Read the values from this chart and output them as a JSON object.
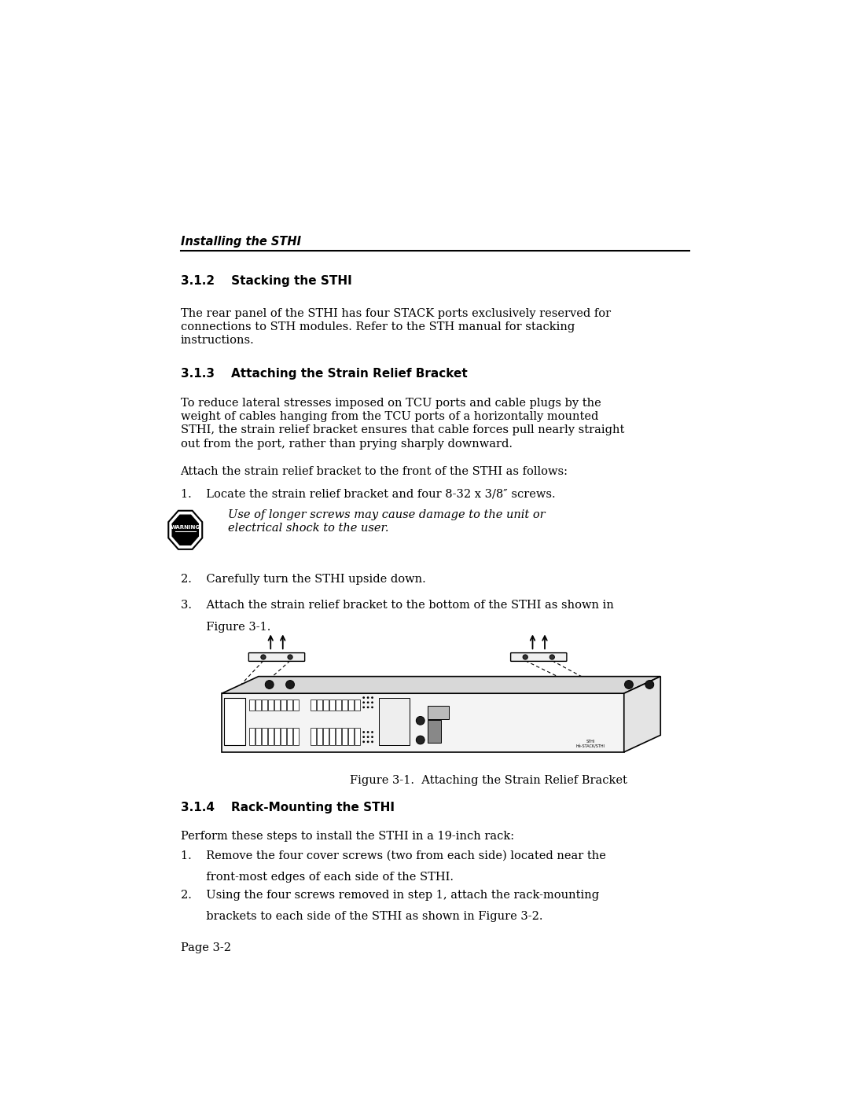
{
  "bg_color": "#ffffff",
  "page_width": 10.8,
  "page_height": 13.97,
  "header_italic_bold": "Installing the STHI",
  "section_312_title": "3.1.2    Stacking the STHI",
  "section_312_body": "The rear panel of the STHI has four STACK ports exclusively reserved for\nconnections to STH modules. Refer to the STH manual for stacking\ninstructions.",
  "section_313_title": "3.1.3    Attaching the Strain Relief Bracket",
  "section_313_body1": "To reduce lateral stresses imposed on TCU ports and cable plugs by the\nweight of cables hanging from the TCU ports of a horizontally mounted\nSTHI, the strain relief bracket ensures that cable forces pull nearly straight\nout from the port, rather than prying sharply downward.",
  "section_313_body2": "Attach the strain relief bracket to the front of the STHI as follows:",
  "step1": "1.    Locate the strain relief bracket and four 8-32 x 3/8″ screws.",
  "warning_text": "Use of longer screws may cause damage to the unit or\nelectrical shock to the user.",
  "step2": "2.    Carefully turn the STHI upside down.",
  "step3_line1": "3.    Attach the strain relief bracket to the bottom of the STHI as shown in",
  "step3_line2": "       Figure 3-1.",
  "figure_caption": "Figure 3-1.  Attaching the Strain Relief Bracket",
  "section_314_title": "3.1.4    Rack-Mounting the STHI",
  "section_314_body1": "Perform these steps to install the STHI in a 19-inch rack:",
  "rack_step1_line1": "1.    Remove the four cover screws (two from each side) located near the",
  "rack_step1_line2": "       front-most edges of each side of the STHI.",
  "rack_step2_line1": "2.    Using the four screws removed in step 1, attach the rack-mounting",
  "rack_step2_line2": "       brackets to each side of the STHI as shown in Figure 3-2.",
  "page_num": "Page 3-2",
  "text_color": "#000000",
  "ml": 1.22,
  "mr": 9.58
}
